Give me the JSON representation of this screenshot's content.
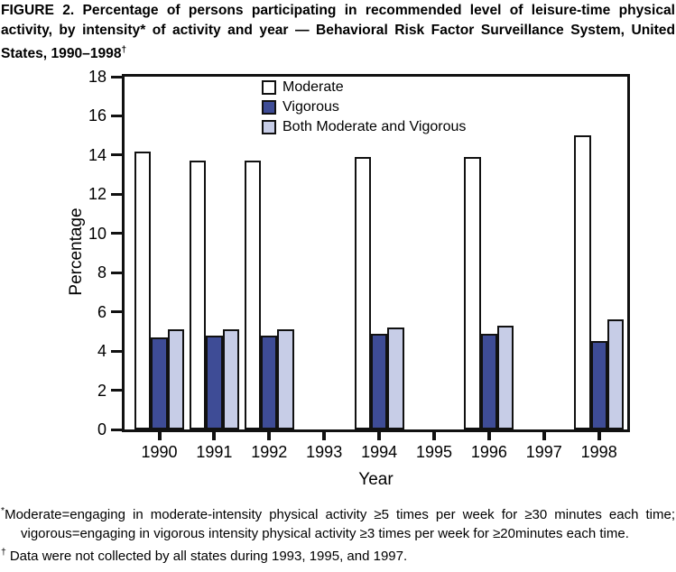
{
  "figure": {
    "title": "FIGURE 2. Percentage of persons participating in recommended level of leisure-time physical activity, by intensity* of activity and year — Behavioral Risk Factor Surveillance System, United States, 1990–1998",
    "title_footnote_marker": "†"
  },
  "chart_data": {
    "type": "bar",
    "title": "",
    "xlabel": "Year",
    "ylabel": "Percentage",
    "ylim": [
      0,
      18
    ],
    "yticks": [
      0,
      2,
      4,
      6,
      8,
      10,
      12,
      14,
      16,
      18
    ],
    "grid": false,
    "legend_position": "top-center-inside",
    "categories": [
      "1990",
      "1991",
      "1992",
      "1993",
      "1994",
      "1995",
      "1996",
      "1997",
      "1998"
    ],
    "series": [
      {
        "name": "Moderate",
        "color": "#ffffff",
        "values": [
          14.2,
          13.7,
          13.7,
          null,
          13.9,
          null,
          13.9,
          null,
          15.0
        ]
      },
      {
        "name": "Vigorous",
        "color": "#3e4c96",
        "values": [
          4.7,
          4.8,
          4.8,
          null,
          4.9,
          null,
          4.9,
          null,
          4.5
        ]
      },
      {
        "name": "Both Moderate and Vigorous",
        "color": "#c7cde7",
        "values": [
          5.1,
          5.1,
          5.1,
          null,
          5.2,
          null,
          5.3,
          null,
          5.6
        ]
      }
    ],
    "missing_data_years": [
      "1993",
      "1995",
      "1997"
    ],
    "bar_border_color": "#111111",
    "axis_color": "#111111"
  },
  "footnotes": [
    {
      "marker": "*",
      "text": "Moderate=engaging in moderate-intensity physical activity ≥5 times per week for ≥30 minutes each time; vigorous=engaging in vigorous intensity physical activity ≥3 times per week for ≥20minutes each time."
    },
    {
      "marker": "†",
      "text": "Data were not collected by all states during 1993, 1995, and 1997."
    }
  ]
}
